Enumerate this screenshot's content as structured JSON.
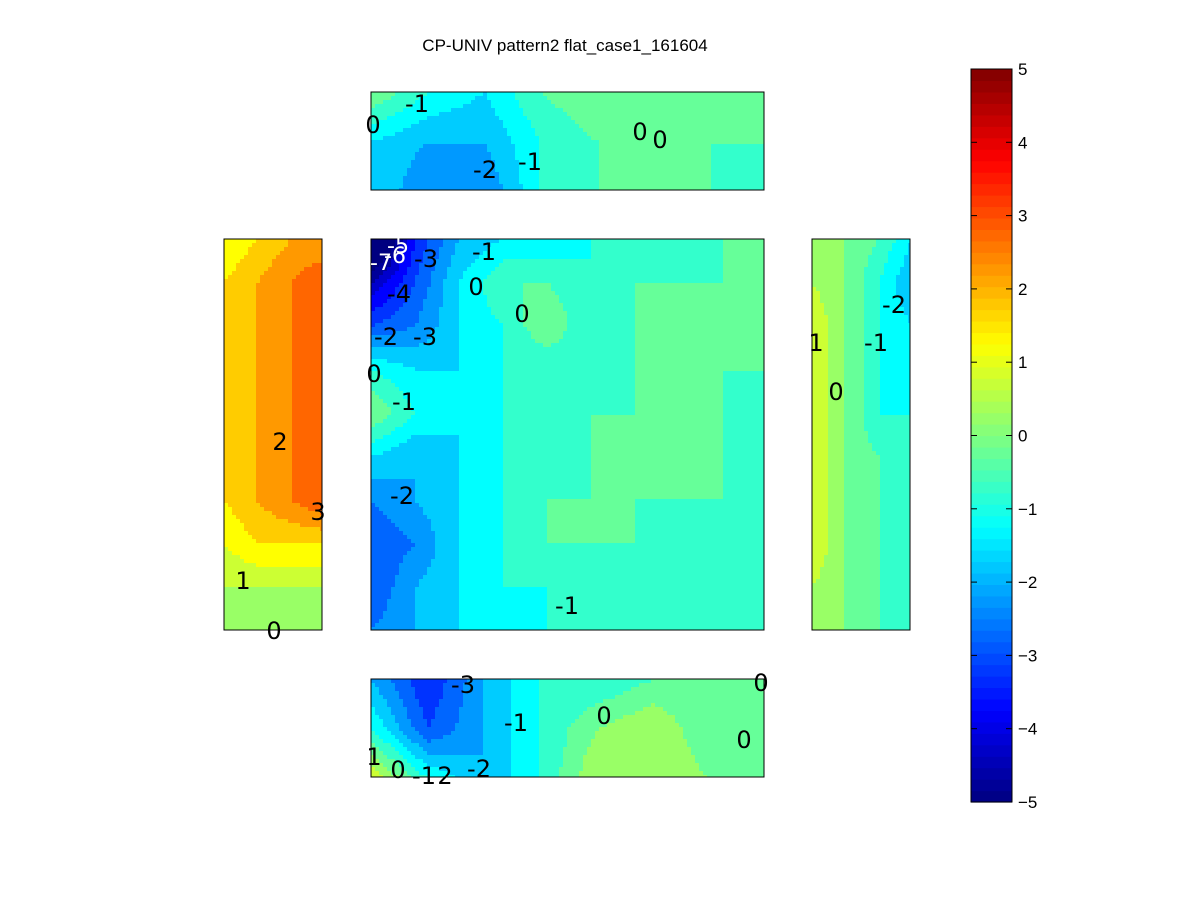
{
  "chart_data": {
    "type": "heatmap",
    "subtype": "filled-contour (multi-face layout)",
    "title": "CP-UNIV pattern2 flat_case1_161604",
    "colormap": "jet",
    "clim": [
      -5,
      5
    ],
    "colorbar": {
      "ticks": [
        5,
        4,
        3,
        2,
        1,
        0,
        -1,
        -2,
        -3,
        -4,
        -5
      ]
    },
    "panels": [
      {
        "name": "top",
        "grid": [
          [
            0,
            -1,
            -1.5,
            -0.5,
            0,
            0,
            -0.5,
            -0.5
          ],
          [
            -1.5,
            -2,
            -2,
            -1,
            -0.5,
            0,
            -0.5,
            -0.5
          ],
          [
            -1.5,
            -2.5,
            -2.5,
            -1,
            -0.5,
            -0.5,
            -0.5,
            -1
          ]
        ],
        "contour_labels": [
          "0",
          "-1",
          "-2",
          "-1",
          "0",
          "0"
        ]
      },
      {
        "name": "left",
        "grid": [
          [
            1,
            1.5,
            2,
            2
          ],
          [
            1.5,
            2,
            2.5,
            3
          ],
          [
            1.5,
            2,
            2.5,
            3
          ],
          [
            1.5,
            2,
            2.5,
            3
          ],
          [
            1.5,
            2,
            2.5,
            3
          ],
          [
            1.5,
            2,
            2.5,
            3
          ],
          [
            1.5,
            2,
            2.5,
            3
          ],
          [
            1,
            1.5,
            1.5,
            1.5
          ],
          [
            0.5,
            0.5,
            0.5,
            0.5
          ],
          [
            0,
            0,
            0,
            0
          ]
        ],
        "contour_labels": [
          "2",
          "3",
          "1",
          "0"
        ]
      },
      {
        "name": "center",
        "grid": [
          [
            -7,
            -3.5,
            -2,
            -1.5,
            -1.5,
            -1,
            -1,
            -1,
            -0.5,
            -0.5
          ],
          [
            -4.5,
            -3,
            -1.5,
            -0.5,
            -0.5,
            -1,
            -0.5,
            -0.5,
            -0.5,
            -0.5
          ],
          [
            -3,
            -2.5,
            -1.5,
            -1,
            0,
            -1,
            -0.5,
            -0.5,
            -0.5,
            -0.5
          ],
          [
            -1,
            -1.5,
            -1.5,
            -1,
            -1,
            -1,
            -0.5,
            -0.5,
            -0.5,
            -0.5
          ],
          [
            0,
            -1,
            -1.5,
            -1,
            -1,
            -0.5,
            -0.5,
            -0.5,
            -0.5,
            -1
          ],
          [
            -1.5,
            -2,
            -1.5,
            -1,
            -1,
            -0.5,
            -0.5,
            -0.5,
            -0.5,
            -1
          ],
          [
            -2.5,
            -2,
            -1.5,
            -1,
            -0.5,
            -0.5,
            -0.5,
            -0.5,
            -0.5,
            -1
          ],
          [
            -3,
            -2.5,
            -1.5,
            -1,
            -0.5,
            -0.5,
            -0.5,
            -1,
            -1,
            -1
          ],
          [
            -3,
            -2,
            -1.5,
            -1,
            -1,
            -1,
            -1,
            -1,
            -1,
            -1
          ],
          [
            -2.5,
            -2,
            -1.5,
            -1.5,
            -1,
            -1,
            -1,
            -1,
            -1,
            -1
          ]
        ],
        "contour_labels": [
          "-5",
          "-6",
          "-7",
          "-3",
          "-1",
          "-4",
          "0",
          "0",
          "-2",
          "-3",
          "0",
          "-1",
          "-2",
          "-1"
        ]
      },
      {
        "name": "right",
        "grid": [
          [
            0.5,
            0,
            -0.5,
            -1.5
          ],
          [
            0.5,
            0,
            -1,
            -2
          ],
          [
            1,
            0,
            -1,
            -1.5
          ],
          [
            1,
            0,
            -1,
            -1.5
          ],
          [
            1,
            0,
            -1,
            -1
          ],
          [
            1,
            0,
            -0.5,
            -1
          ],
          [
            1,
            0,
            -0.5,
            -1
          ],
          [
            1,
            0,
            -0.5,
            -1
          ],
          [
            0.5,
            0,
            -0.5,
            -1
          ],
          [
            0.5,
            0,
            -0.5,
            -1
          ]
        ],
        "contour_labels": [
          "-2",
          "1",
          "-1",
          "0"
        ]
      },
      {
        "name": "bottom",
        "grid": [
          [
            -2,
            -3.5,
            -2,
            -1,
            -1,
            -0.5,
            -0.5,
            0
          ],
          [
            -1,
            -3,
            -2,
            -1,
            0,
            0.5,
            -0.5,
            0
          ],
          [
            1,
            -1,
            -2,
            -1,
            0.5,
            0.5,
            0,
            0
          ]
        ],
        "contour_labels": [
          "-3",
          "0",
          "-1",
          "0",
          "0",
          "1",
          "0",
          "-1",
          "2",
          "-2"
        ]
      }
    ]
  }
}
